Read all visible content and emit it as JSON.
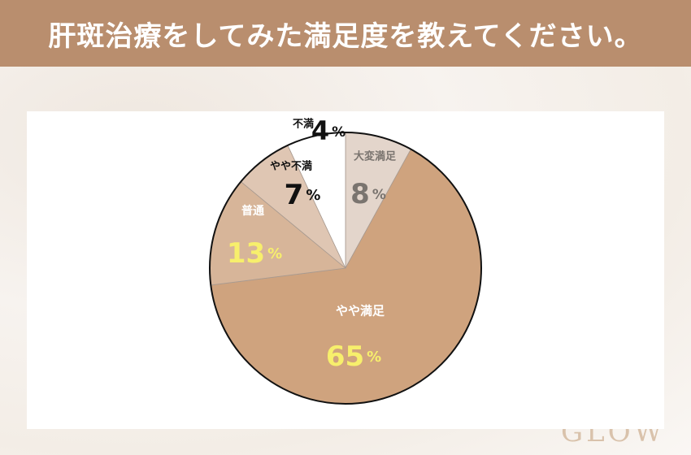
{
  "header": {
    "title": "肝斑治療をしてみた満足度を教えてください。"
  },
  "logo": {
    "text": "GLOW"
  },
  "chart_data": {
    "type": "pie",
    "title": "",
    "start": "top",
    "direction": "clockwise",
    "slices": [
      {
        "label": "大変満足",
        "value": 8,
        "display": "8",
        "color": "#e3d5cb",
        "label_color": "#7a746f",
        "value_color": "#7a746f"
      },
      {
        "label": "やや満足",
        "value": 65,
        "display": "65",
        "color": "#cfa37e",
        "label_color": "#ffffff",
        "value_color": "#f7ef6c"
      },
      {
        "label": "普通",
        "value": 13,
        "display": "13",
        "color": "#d7b599",
        "label_color": "#ffffff",
        "value_color": "#f7ef6c"
      },
      {
        "label": "やや不満",
        "value": 7,
        "display": "7",
        "color": "#dfc6b3",
        "label_color": "#111111",
        "value_color": "#111111"
      },
      {
        "label": "不満",
        "value": 4,
        "display": "4",
        "color": "#ffffff",
        "label_color": "#111111",
        "value_color": "#111111"
      }
    ],
    "unit": "%"
  }
}
